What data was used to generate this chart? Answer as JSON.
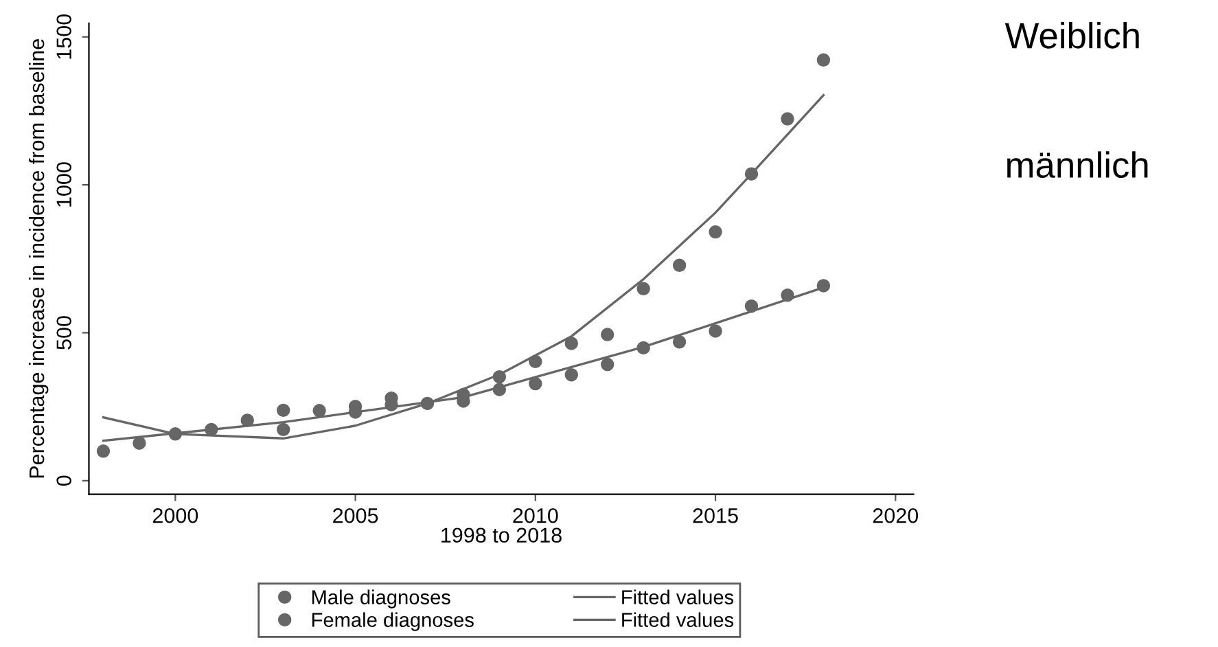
{
  "chart_data": {
    "type": "scatter",
    "xlabel": "1998 to 2018",
    "ylabel": "Percentage increase in incidence from baseline",
    "xlim": [
      1997.6,
      2020.5
    ],
    "xticks": [
      2000,
      2005,
      2010,
      2015,
      2020
    ],
    "ylim": [
      -46,
      1546
    ],
    "yticks": [
      0,
      500,
      1000,
      1500
    ],
    "grid": false,
    "legend": "bottom",
    "series": [
      {
        "name": "Male diagnoses",
        "color": "#666666",
        "marker": "circle",
        "x": [
          1998,
          1999,
          2000,
          2001,
          2002,
          2003,
          2004,
          2005,
          2006,
          2007,
          2008,
          2009,
          2010,
          2011,
          2012,
          2013,
          2014,
          2015,
          2016,
          2017,
          2018
        ],
        "values": [
          100,
          127,
          158,
          173,
          204,
          173,
          237,
          232,
          257,
          261,
          269,
          308,
          328,
          358,
          393,
          449,
          469,
          506,
          590,
          627,
          659
        ]
      },
      {
        "type": "line",
        "name": "Fitted values",
        "color": "#666666",
        "marker": "none",
        "x": [
          1998,
          2003,
          2008,
          2013,
          2018
        ],
        "values": [
          135,
          198,
          282,
          452,
          653
        ]
      },
      {
        "name": "Female diagnoses",
        "color": "#666666",
        "marker": "circle",
        "x": [
          2003,
          2005,
          2006,
          2008,
          2009,
          2010,
          2011,
          2012,
          2013,
          2014,
          2015,
          2016,
          2017,
          2018
        ],
        "values": [
          238,
          251,
          279,
          291,
          351,
          403,
          464,
          494,
          649,
          728,
          841,
          1037,
          1223,
          1422
        ]
      },
      {
        "type": "line",
        "name": "Fitted values",
        "color": "#666666",
        "marker": "none",
        "x": [
          1998,
          2000,
          2003,
          2005,
          2007,
          2009,
          2011,
          2013,
          2015,
          2016,
          2018
        ],
        "values": [
          214,
          158,
          143,
          186,
          261,
          359,
          488,
          681,
          906,
          1037,
          1303
        ]
      }
    ],
    "annotations": [
      "Weiblich",
      "männlich"
    ]
  }
}
